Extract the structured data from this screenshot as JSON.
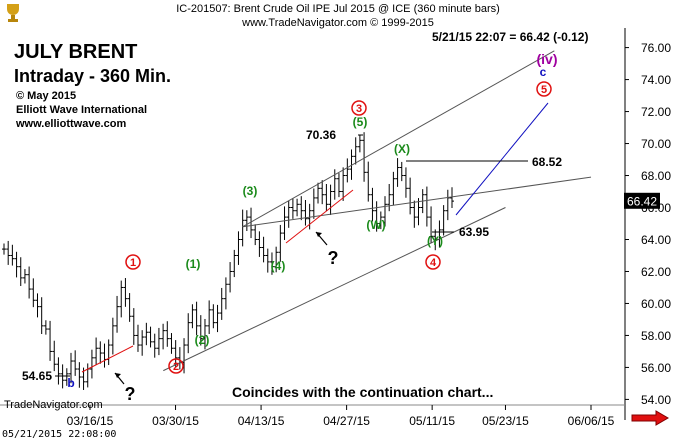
{
  "header": {
    "title": "IC-201507:  Brent Crude Oil IPE Jul 2015 @ ICE  (360 minute bars)",
    "copyright": "www.TradeNavigator.com © 1999-2015"
  },
  "readout": "5/21/15 22:07 = 66.42 (-0.12)",
  "headline": {
    "line1": "JULY BRENT",
    "line2": "Intraday - 360 Min."
  },
  "credits": {
    "c1": "© May 2015",
    "c2": "Elliott Wave International",
    "c3": "www.elliottwave.com"
  },
  "footer_note": "Coincides with the continuation chart...",
  "brand": "TradeNavigator.com",
  "timestamp": "05/21/2015 22:08:00",
  "colors": {
    "bars": "#000000",
    "red": "#e01010",
    "green": "#1a8a1a",
    "blue": "#1010c0",
    "purple": "#a000a0",
    "channel": "#555555",
    "price_box": "#000000"
  },
  "icons": {
    "logo": "trophy-logo-icon",
    "scroll": "right-arrow-icon"
  },
  "chart_data": {
    "type": "ohlc",
    "title": "IC-201507:  Brent Crude Oil IPE Jul 2015 @ ICE  (360 minute bars)",
    "xlabel": "",
    "ylabel": "",
    "ylim": [
      53,
      77
    ],
    "y_ticks": [
      "54.00",
      "56.00",
      "58.00",
      "60.00",
      "62.00",
      "64.00",
      "66.00",
      "68.00",
      "70.00",
      "72.00",
      "74.00",
      "76.00"
    ],
    "x_ticks": [
      "03/16/15",
      "03/30/15",
      "04/13/15",
      "04/27/15",
      "05/11/15",
      "05/23/15",
      "06/06/15"
    ],
    "last_price": "66.42",
    "closes": [
      63.4,
      63.0,
      62.8,
      62.3,
      61.6,
      61.8,
      60.9,
      60.2,
      59.8,
      58.6,
      58.4,
      57.0,
      56.2,
      55.6,
      55.2,
      55.6,
      56.4,
      55.9,
      55.4,
      55.1,
      55.9,
      56.6,
      57.2,
      56.9,
      56.5,
      57.4,
      58.6,
      59.8,
      61.0,
      60.3,
      59.2,
      58.0,
      57.4,
      57.9,
      58.2,
      57.6,
      57.2,
      57.8,
      58.3,
      57.8,
      57.2,
      56.6,
      56.3,
      57.4,
      58.8,
      59.6,
      58.6,
      57.8,
      58.6,
      59.6,
      58.8,
      59.4,
      60.3,
      61.2,
      62.0,
      63.0,
      64.0,
      65.2,
      65.4,
      64.6,
      64.0,
      63.5,
      63.0,
      62.6,
      62.3,
      63.2,
      64.4,
      65.4,
      66.0,
      65.8,
      66.2,
      65.8,
      65.3,
      65.8,
      66.6,
      67.2,
      66.8,
      66.2,
      67.0,
      67.8,
      67.0,
      68.0,
      68.4,
      69.2,
      69.8,
      70.2,
      68.2,
      66.8,
      65.8,
      65.0,
      65.4,
      66.2,
      66.8,
      67.8,
      68.5,
      68.0,
      67.2,
      66.0,
      65.4,
      66.0,
      66.8,
      65.4,
      64.2,
      64.0,
      64.6,
      65.8,
      66.6,
      66.4
    ],
    "channel_lines": [
      {
        "name": "upper-channel",
        "points": [
          [
            "2015-04-10",
            64.8
          ],
          [
            "2015-06-06",
            67.9
          ]
        ]
      },
      {
        "name": "mid-channel",
        "points": [
          [
            "2015-04-10",
            64.8
          ],
          [
            "2015-05-31",
            75.8
          ]
        ]
      },
      {
        "name": "lower-channel",
        "points": [
          [
            "2015-03-28",
            55.8
          ],
          [
            "2015-05-23",
            66.0
          ]
        ]
      }
    ],
    "annotations": {
      "circled_red": [
        "1",
        "2",
        "3",
        "4",
        "5"
      ],
      "green_labels": [
        "(1)",
        "(2)",
        "(3)",
        "(4)",
        "(5)",
        "(W)",
        "(X)",
        "(Y)"
      ],
      "wave_iv": "(iv)",
      "wave_c": "c",
      "wave_b": "b",
      "question_marks": [
        "?",
        "?"
      ],
      "price_labels": [
        "54.65",
        "70.36",
        "68.52",
        "63.95"
      ]
    }
  }
}
